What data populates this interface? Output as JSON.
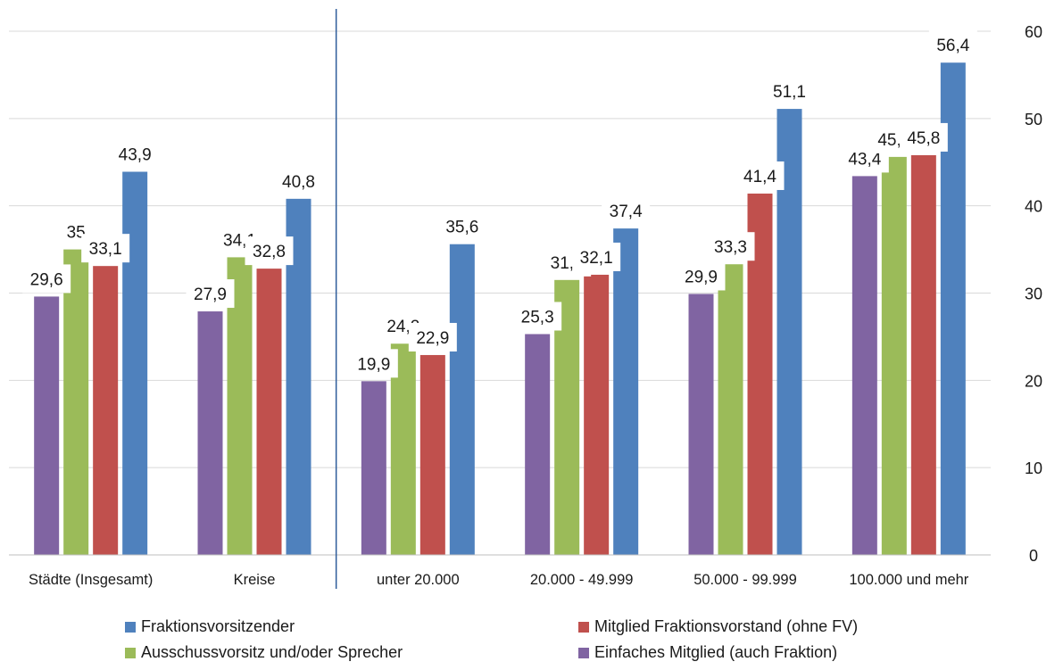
{
  "chart_data": {
    "type": "bar",
    "categories": [
      "Städte (Insgesamt)",
      "Kreise",
      "unter 20.000",
      "20.000 - 49.999",
      "50.000 - 99.999",
      "100.000 und mehr"
    ],
    "series": [
      {
        "name": "Einfaches Mitglied (auch Fraktion)",
        "color": "#8064A2",
        "values": [
          29.6,
          27.9,
          19.9,
          25.3,
          29.9,
          43.4
        ],
        "labels": [
          "29,6",
          "27,9",
          "19,9",
          "25,3",
          "29,9",
          "43,4"
        ]
      },
      {
        "name": "Ausschussvorsitz und/oder Sprecher",
        "color": "#9BBB59",
        "values": [
          35,
          34.1,
          24.2,
          31.5,
          33.3,
          45.6
        ],
        "labels": [
          "35",
          "34,1",
          "24,2",
          "31,5",
          "33,3",
          "45,6"
        ]
      },
      {
        "name": "Mitglied Fraktionsvorstand (ohne FV)",
        "color": "#C0504D",
        "values": [
          33.1,
          32.8,
          22.9,
          32.1,
          41.4,
          45.8
        ],
        "labels": [
          "33,1",
          "32,8",
          "22,9",
          "32,1",
          "41,4",
          "45,8"
        ]
      },
      {
        "name": "Fraktionsvorsitzender",
        "color": "#4F81BD",
        "values": [
          43.9,
          40.8,
          35.6,
          37.4,
          51.1,
          56.4
        ],
        "labels": [
          "43,9",
          "40,8",
          "35,6",
          "37,4",
          "51,1",
          "56,4"
        ]
      }
    ],
    "yticks": [
      "0",
      "10",
      "20",
      "30",
      "40",
      "50",
      "60"
    ],
    "ylim": [
      0,
      60
    ],
    "y_axis_side": "right",
    "grid": true,
    "separator_after_category": 1,
    "separator_color": "#2E5C9A",
    "legend_position": "bottom",
    "legend_order": [
      "Fraktionsvorsitzender",
      "Mitglied Fraktionsvorstand (ohne FV)",
      "Ausschussvorsitz und/oder Sprecher",
      "Einfaches Mitglied (auch Fraktion)"
    ]
  }
}
